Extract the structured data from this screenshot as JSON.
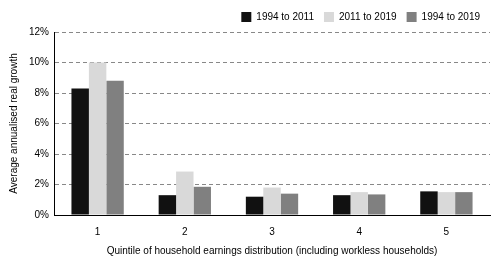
{
  "chart_data": {
    "type": "bar",
    "categories": [
      "1",
      "2",
      "3",
      "4",
      "5"
    ],
    "series": [
      {
        "name": "1994 to 2011",
        "color": "#111111",
        "values": [
          8.3,
          1.3,
          1.2,
          1.3,
          1.55
        ]
      },
      {
        "name": "2011 to 2019",
        "color": "#d9d9d9",
        "values": [
          10.0,
          2.85,
          1.8,
          1.5,
          1.5
        ]
      },
      {
        "name": "1994 to 2019",
        "color": "#808080",
        "values": [
          8.8,
          1.85,
          1.4,
          1.35,
          1.5
        ]
      }
    ],
    "x_label": "Quintile of household earnings distribution (including workless households)",
    "y_label": "Average annualised real growth",
    "ylim": [
      0,
      12
    ],
    "yticks": [
      {
        "value": 0,
        "label": "0%"
      },
      {
        "value": 2,
        "label": "2%"
      },
      {
        "value": 4,
        "label": "4%"
      },
      {
        "value": 6,
        "label": "6%"
      },
      {
        "value": 8,
        "label": "8%"
      },
      {
        "value": 10,
        "label": "10%"
      },
      {
        "value": 12,
        "label": "12%"
      }
    ],
    "grid": true,
    "legend": "top"
  }
}
